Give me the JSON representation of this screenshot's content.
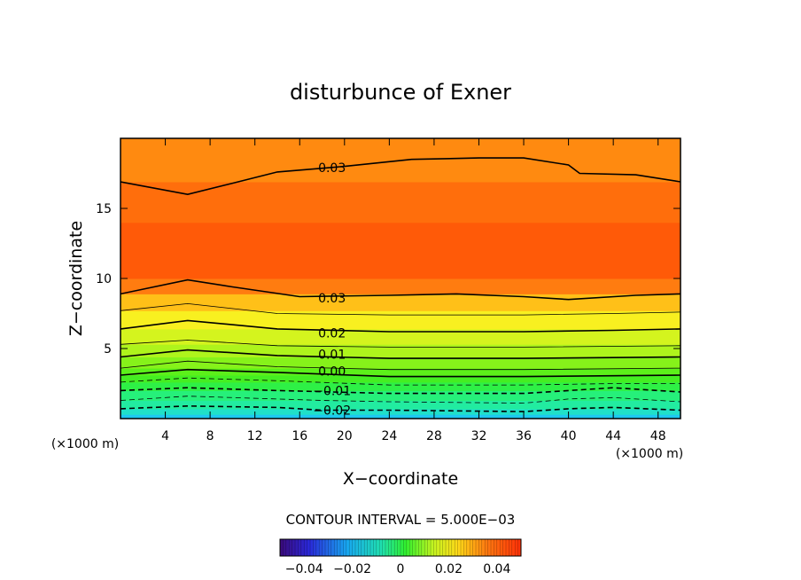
{
  "chart_data": {
    "type": "contour",
    "title": "disturbunce of Exner",
    "xlabel": "X−coordinate",
    "ylabel": "Z−coordinate",
    "x_unit": "(×1000 m)",
    "y_unit": "(×1000 m)",
    "xlim": [
      0,
      50
    ],
    "ylim": [
      0,
      20
    ],
    "x_ticks": [
      4,
      8,
      12,
      16,
      20,
      24,
      28,
      32,
      36,
      40,
      44,
      48
    ],
    "y_ticks": [
      5,
      10,
      15
    ],
    "contour_interval_text": "CONTOUR INTERVAL = 5.000E−03",
    "contour_interval": 0.005,
    "contour_labels": [
      {
        "text": "0.03",
        "value": 0.03,
        "x": 17.3,
        "y": 17.9
      },
      {
        "text": "0.03",
        "value": 0.03,
        "x": 17.3,
        "y": 8.6
      },
      {
        "text": "0.02",
        "value": 0.02,
        "x": 17.3,
        "y": 6.1
      },
      {
        "text": "0.01",
        "value": 0.01,
        "x": 17.3,
        "y": 4.6
      },
      {
        "text": "0.00",
        "value": 0.0,
        "x": 17.3,
        "y": 3.4
      },
      {
        "text": "−0.01",
        "value": -0.01,
        "x": 17.3,
        "y": 2.0
      },
      {
        "text": "−0.02",
        "value": -0.02,
        "x": 17.3,
        "y": 0.6
      }
    ],
    "contour_lines": [
      {
        "value": 0.03,
        "style": "solid-thick",
        "points": [
          [
            0,
            16.9
          ],
          [
            6,
            16.0
          ],
          [
            10,
            16.8
          ],
          [
            14,
            17.6
          ],
          [
            20,
            18.0
          ],
          [
            26,
            18.5
          ],
          [
            32,
            18.6
          ],
          [
            36,
            18.6
          ],
          [
            40,
            18.1
          ],
          [
            41,
            17.5
          ],
          [
            46,
            17.4
          ],
          [
            50,
            16.9
          ]
        ]
      },
      {
        "value": 0.03,
        "style": "solid-thick",
        "points": [
          [
            0,
            8.9
          ],
          [
            6,
            9.9
          ],
          [
            10,
            9.4
          ],
          [
            16,
            8.7
          ],
          [
            24,
            8.8
          ],
          [
            30,
            8.9
          ],
          [
            36,
            8.7
          ],
          [
            40,
            8.5
          ],
          [
            46,
            8.8
          ],
          [
            50,
            8.9
          ]
        ]
      },
      {
        "value": 0.025,
        "style": "solid-thin",
        "points": [
          [
            0,
            7.7
          ],
          [
            6,
            8.2
          ],
          [
            14,
            7.5
          ],
          [
            24,
            7.4
          ],
          [
            36,
            7.4
          ],
          [
            44,
            7.5
          ],
          [
            50,
            7.6
          ]
        ]
      },
      {
        "value": 0.02,
        "style": "solid-thick",
        "points": [
          [
            0,
            6.4
          ],
          [
            6,
            7.0
          ],
          [
            14,
            6.4
          ],
          [
            24,
            6.2
          ],
          [
            36,
            6.2
          ],
          [
            44,
            6.3
          ],
          [
            50,
            6.4
          ]
        ]
      },
      {
        "value": 0.015,
        "style": "solid-thin",
        "points": [
          [
            0,
            5.3
          ],
          [
            6,
            5.6
          ],
          [
            14,
            5.2
          ],
          [
            24,
            5.1
          ],
          [
            36,
            5.1
          ],
          [
            50,
            5.2
          ]
        ]
      },
      {
        "value": 0.01,
        "style": "solid-thick",
        "points": [
          [
            0,
            4.4
          ],
          [
            6,
            4.9
          ],
          [
            14,
            4.5
          ],
          [
            24,
            4.3
          ],
          [
            36,
            4.3
          ],
          [
            50,
            4.4
          ]
        ]
      },
      {
        "value": 0.005,
        "style": "solid-thin",
        "points": [
          [
            0,
            3.6
          ],
          [
            6,
            4.1
          ],
          [
            14,
            3.7
          ],
          [
            24,
            3.5
          ],
          [
            36,
            3.5
          ],
          [
            50,
            3.6
          ]
        ]
      },
      {
        "value": 0.0,
        "style": "solid-thick",
        "points": [
          [
            0,
            3.1
          ],
          [
            6,
            3.5
          ],
          [
            14,
            3.3
          ],
          [
            24,
            3.0
          ],
          [
            36,
            3.0
          ],
          [
            50,
            3.1
          ]
        ]
      },
      {
        "value": -0.005,
        "style": "dashed-thin",
        "points": [
          [
            0,
            2.6
          ],
          [
            6,
            2.9
          ],
          [
            14,
            2.7
          ],
          [
            24,
            2.4
          ],
          [
            36,
            2.4
          ],
          [
            44,
            2.5
          ],
          [
            50,
            2.5
          ]
        ]
      },
      {
        "value": -0.01,
        "style": "dashed-thick",
        "points": [
          [
            0,
            2.0
          ],
          [
            6,
            2.2
          ],
          [
            14,
            2.0
          ],
          [
            24,
            1.8
          ],
          [
            36,
            1.8
          ],
          [
            40,
            2.0
          ],
          [
            44,
            2.2
          ],
          [
            50,
            1.9
          ]
        ]
      },
      {
        "value": -0.015,
        "style": "dashed-thin",
        "points": [
          [
            0,
            1.3
          ],
          [
            6,
            1.6
          ],
          [
            14,
            1.4
          ],
          [
            18,
            1.3
          ],
          [
            24,
            1.2
          ],
          [
            36,
            1.1
          ],
          [
            40,
            1.4
          ],
          [
            44,
            1.5
          ],
          [
            50,
            1.2
          ]
        ]
      },
      {
        "value": -0.02,
        "style": "dashed-thick",
        "points": [
          [
            0,
            0.7
          ],
          [
            6,
            0.9
          ],
          [
            14,
            0.8
          ],
          [
            18,
            0.6
          ],
          [
            24,
            0.6
          ],
          [
            36,
            0.5
          ],
          [
            40,
            0.7
          ],
          [
            44,
            0.8
          ],
          [
            50,
            0.6
          ]
        ]
      }
    ],
    "fill_bands": [
      {
        "lower": 0.0,
        "upper": 0.3,
        "color": "#1ec8f0"
      },
      {
        "lower": 0.3,
        "upper": 0.7,
        "color": "#20e0c8"
      },
      {
        "lower": 0.7,
        "upper": 1.3,
        "color": "#22eca0"
      },
      {
        "lower": 1.3,
        "upper": 2.0,
        "color": "#26f07a"
      },
      {
        "lower": 2.0,
        "upper": 2.6,
        "color": "#2ef046"
      },
      {
        "lower": 2.6,
        "upper": 3.1,
        "color": "#44ee22"
      },
      {
        "lower": 3.1,
        "upper": 3.6,
        "color": "#5cf01a"
      },
      {
        "lower": 3.6,
        "upper": 4.4,
        "color": "#86f21a"
      },
      {
        "lower": 4.4,
        "upper": 5.3,
        "color": "#aef41c"
      },
      {
        "lower": 5.3,
        "upper": 6.4,
        "color": "#d4f41e"
      },
      {
        "lower": 6.4,
        "upper": 7.7,
        "color": "#f8f020"
      },
      {
        "lower": 7.7,
        "upper": 8.9,
        "color": "#ffc018"
      },
      {
        "lower": 8.9,
        "upper": 10.0,
        "color": "#ff7c10"
      },
      {
        "lower": 10.0,
        "upper": 14.0,
        "color": "#ff5a08"
      },
      {
        "lower": 14.0,
        "upper": 16.9,
        "color": "#ff6e0c"
      },
      {
        "lower": 16.9,
        "upper": 20.0,
        "color": "#ff8a10"
      }
    ],
    "colorbar": {
      "range": [
        -0.05,
        0.05
      ],
      "tick_labels": [
        "−0.04",
        "−0.02",
        "0",
        "0.02",
        "0.04"
      ],
      "tick_values": [
        -0.04,
        -0.02,
        0,
        0.02,
        0.04
      ]
    }
  }
}
